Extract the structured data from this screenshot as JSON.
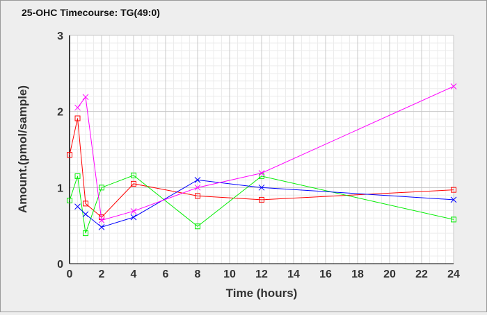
{
  "chart_data": {
    "type": "line",
    "title": "25-OHC Timecourse: TG(49:0)",
    "xlabel": "Time (hours)",
    "ylabel": "Amount.(pmol/sample)",
    "xlim": [
      0,
      24
    ],
    "ylim": [
      0,
      3
    ],
    "xticks": [
      0,
      2,
      4,
      6,
      8,
      10,
      12,
      14,
      16,
      18,
      20,
      22,
      24
    ],
    "yticks": [
      0,
      1,
      2,
      3
    ],
    "grid": true,
    "series": [
      {
        "name": "red",
        "color": "#ff0000",
        "marker": "square",
        "x": [
          0,
          0.5,
          1,
          2,
          4,
          8,
          12,
          24
        ],
        "y": [
          1.43,
          1.91,
          0.79,
          0.61,
          1.05,
          0.89,
          0.84,
          0.97
        ]
      },
      {
        "name": "green",
        "color": "#00ee00",
        "marker": "square",
        "x": [
          0,
          0.5,
          1,
          2,
          4,
          8,
          12,
          24
        ],
        "y": [
          0.83,
          1.15,
          0.4,
          1.0,
          1.16,
          0.49,
          1.15,
          0.58
        ]
      },
      {
        "name": "blue",
        "color": "#0000ff",
        "marker": "x",
        "x": [
          0.5,
          1,
          2,
          4,
          8,
          12,
          24
        ],
        "y": [
          0.75,
          0.65,
          0.48,
          0.61,
          1.1,
          1.0,
          0.84
        ]
      },
      {
        "name": "magenta",
        "color": "#ff00ff",
        "marker": "x",
        "x": [
          0.5,
          1,
          2,
          4,
          8,
          12,
          24
        ],
        "y": [
          2.05,
          2.19,
          0.57,
          0.69,
          1.0,
          1.19,
          2.33
        ]
      }
    ]
  }
}
